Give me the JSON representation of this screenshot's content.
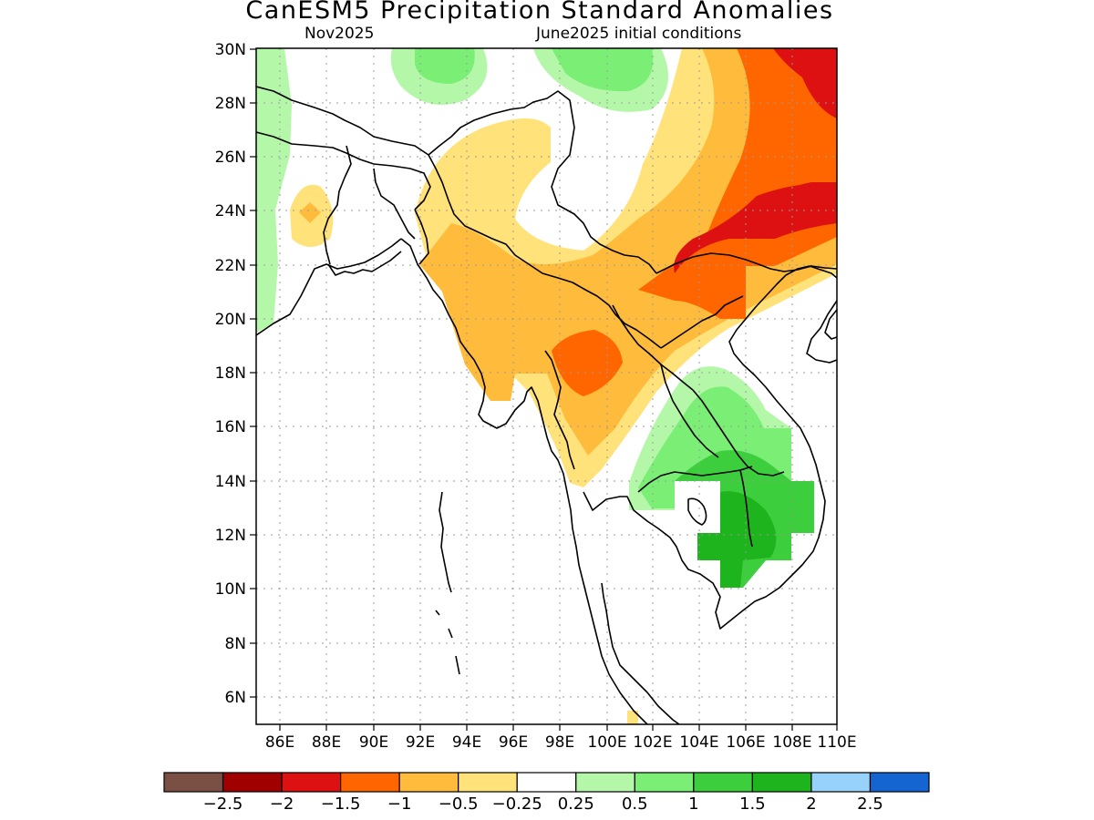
{
  "title": "CanESM5 Precipitation Standard Anomalies",
  "subtitle_left": "Nov2025",
  "subtitle_right": "June2025 initial conditions",
  "lat_ticks": [
    "30N",
    "28N",
    "26N",
    "24N",
    "22N",
    "20N",
    "18N",
    "16N",
    "14N",
    "12N",
    "10N",
    "8N",
    "6N"
  ],
  "lon_ticks": [
    "86E",
    "88E",
    "90E",
    "92E",
    "94E",
    "96E",
    "98E",
    "100E",
    "102E",
    "104E",
    "106E",
    "108E",
    "110E"
  ],
  "colorbar": {
    "colors": [
      "#7a5044",
      "#a00000",
      "#dd1111",
      "#ff6600",
      "#ffbb3c",
      "#ffe27a",
      "#ffffff",
      "#b4f7a8",
      "#7aee75",
      "#3cce3c",
      "#1eb41e",
      "#96d2fa",
      "#1464d2"
    ],
    "labels": [
      "-2.5",
      "-2",
      "-1.5",
      "-1",
      "-0.5",
      "-0.25",
      "0.25",
      "0.5",
      "1",
      "1.5",
      "2",
      "2.5"
    ]
  }
}
